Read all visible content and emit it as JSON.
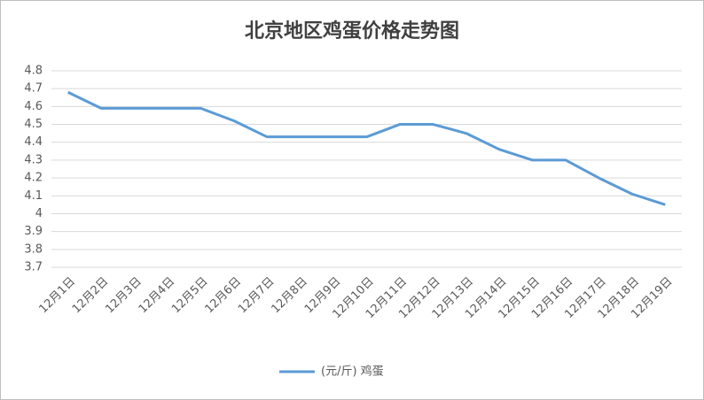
{
  "chart_data": {
    "type": "line",
    "title": "北京地区鸡蛋价格走势图",
    "categories": [
      "12月1日",
      "12月2日",
      "12月3日",
      "12月4日",
      "12月5日",
      "12月6日",
      "12月7日",
      "12月8日",
      "12月9日",
      "12月10日",
      "12月11日",
      "12月12日",
      "12月13日",
      "12月14日",
      "12月15日",
      "12月16日",
      "12月17日",
      "12月18日",
      "12月19日"
    ],
    "series": [
      {
        "name": "(元/斤) 鸡蛋",
        "color": "#5b9bd5",
        "values": [
          4.68,
          4.59,
          4.59,
          4.59,
          4.59,
          4.52,
          4.43,
          4.43,
          4.43,
          4.43,
          4.5,
          4.5,
          4.45,
          4.36,
          4.3,
          4.3,
          4.2,
          4.11,
          4.05
        ]
      }
    ],
    "ylim": [
      3.7,
      4.8
    ],
    "yticks": [
      3.7,
      3.8,
      3.9,
      4,
      4.1,
      4.2,
      4.3,
      4.4,
      4.5,
      4.6,
      4.7,
      4.8
    ],
    "grid": true,
    "legend": "bottom"
  }
}
